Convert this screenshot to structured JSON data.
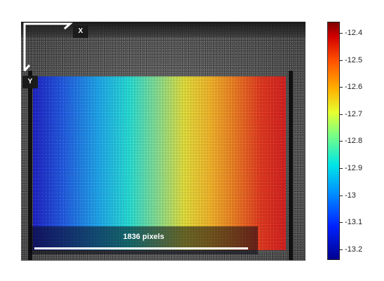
{
  "image_view": {
    "axis_labels": {
      "x": "X",
      "y": "Y"
    },
    "scale_bar": {
      "label": "1836 pixels"
    }
  },
  "colorbar": {
    "colormap": "jet",
    "tick_labels": [
      "-12.4",
      "-12.5",
      "-12.6",
      "-12.7",
      "-12.8",
      "-12.9",
      "-13",
      "-13.1",
      "-13.2"
    ]
  }
}
